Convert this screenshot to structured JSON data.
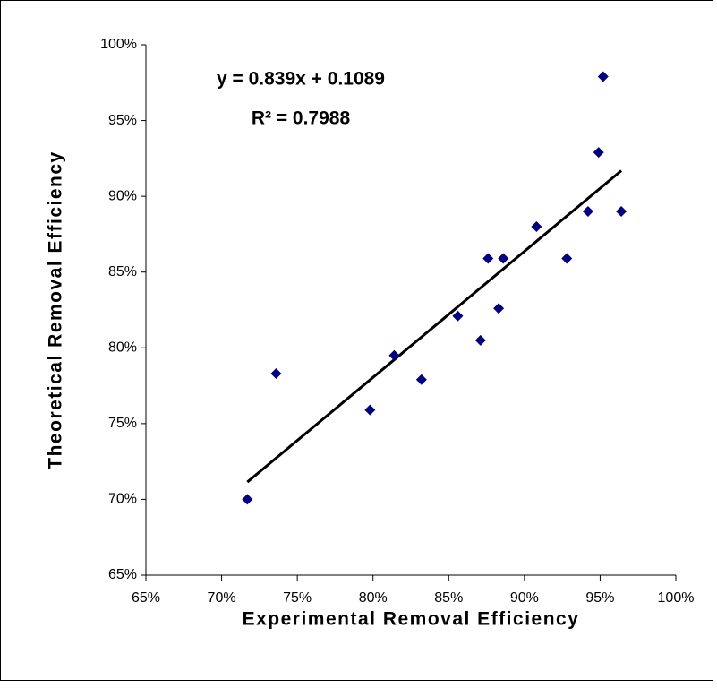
{
  "chart_data": {
    "type": "scatter",
    "x_label": "Experimental Removal Efficiency",
    "y_label": "Theoretical Removal Efficiency",
    "annotations": [
      "y = 0.839x + 0.1089",
      "R² = 0.7988"
    ],
    "series": [
      {
        "color": "#000080",
        "x": [
          71.7,
          73.6,
          79.8,
          81.4,
          83.2,
          85.6,
          87.1,
          87.6,
          88.3,
          88.6,
          90.8,
          92.8,
          94.2,
          94.9,
          95.2,
          96.4
        ],
        "values": [
          70.0,
          78.3,
          75.9,
          79.5,
          77.9,
          82.1,
          80.5,
          85.9,
          82.6,
          85.9,
          88.0,
          85.9,
          89.0,
          92.9,
          97.9,
          89.0
        ]
      }
    ],
    "xlim": [
      65,
      100
    ],
    "ylim": [
      65,
      100
    ],
    "xticks": [
      {
        "value": 65,
        "label": "65%"
      },
      {
        "value": 70,
        "label": "70%"
      },
      {
        "value": 75,
        "label": "75%"
      },
      {
        "value": 80,
        "label": "80%"
      },
      {
        "value": 85,
        "label": "85%"
      },
      {
        "value": 90,
        "label": "90%"
      },
      {
        "value": 95,
        "label": "95%"
      },
      {
        "value": 100,
        "label": "100%"
      }
    ],
    "yticks": [
      {
        "value": 65,
        "label": "65%"
      },
      {
        "value": 70,
        "label": "70%"
      },
      {
        "value": 75,
        "label": "75%"
      },
      {
        "value": 80,
        "label": "80%"
      },
      {
        "value": 85,
        "label": "85%"
      },
      {
        "value": 90,
        "label": "90%"
      },
      {
        "value": 95,
        "label": "95%"
      },
      {
        "value": 100,
        "label": "100%"
      }
    ],
    "trendline": true,
    "grid": false
  }
}
